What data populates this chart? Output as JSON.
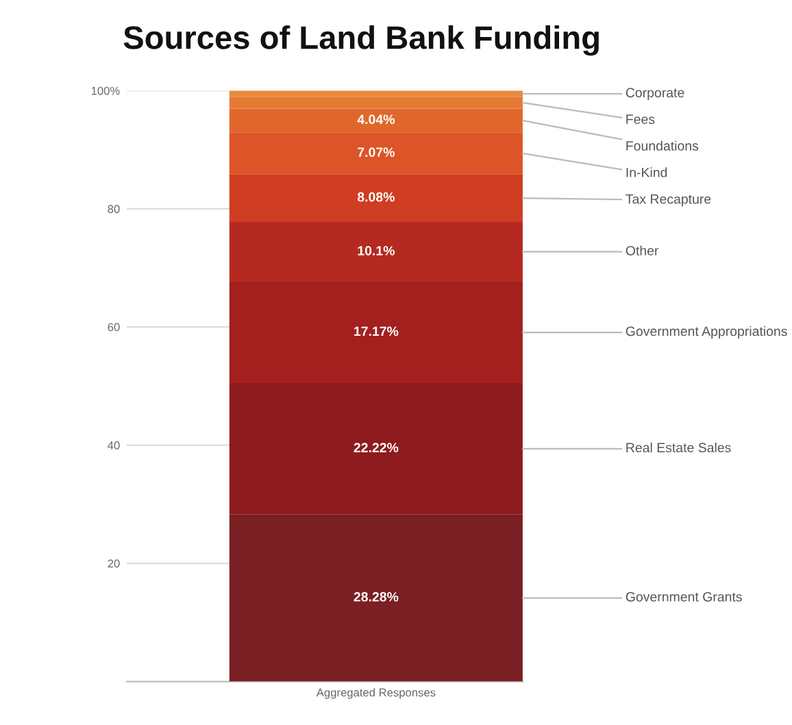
{
  "chart_data": {
    "type": "bar",
    "title": "Sources of Land Bank Funding",
    "stacked": true,
    "categories": [
      "Aggregated Responses"
    ],
    "series": [
      {
        "name": "Government Grants",
        "color": "#7a1f24",
        "values": [
          28.28
        ],
        "value_labels": [
          "28.28%"
        ]
      },
      {
        "name": "Real Estate Sales",
        "color": "#8e1b1e",
        "values": [
          22.22
        ],
        "value_labels": [
          "22.22%"
        ]
      },
      {
        "name": "Government Appropriations",
        "color": "#a3201f",
        "values": [
          17.17
        ],
        "value_labels": [
          "17.17%"
        ]
      },
      {
        "name": "Other",
        "color": "#b52a20",
        "values": [
          10.1
        ],
        "value_labels": [
          "10.1%"
        ]
      },
      {
        "name": "Tax Recapture",
        "color": "#cf3d22",
        "values": [
          8.08
        ],
        "value_labels": [
          "8.08%"
        ]
      },
      {
        "name": "In-Kind",
        "color": "#dc5427",
        "values": [
          7.07
        ],
        "value_labels": [
          "7.07%"
        ]
      },
      {
        "name": "Foundations",
        "color": "#e0672c",
        "values": [
          4.04
        ],
        "value_labels": [
          "4.04%"
        ]
      },
      {
        "name": "Fees",
        "color": "#e57a33",
        "values": [
          2
        ],
        "value_labels": [
          null
        ]
      },
      {
        "name": "Corporate",
        "color": "#e98a3c",
        "values": [
          1
        ],
        "value_labels": [
          null
        ]
      }
    ],
    "ylim": [
      0,
      100
    ],
    "yticks": [
      20,
      40,
      60,
      80,
      {
        "value": 100,
        "label": "100%"
      }
    ],
    "grid": "y"
  }
}
